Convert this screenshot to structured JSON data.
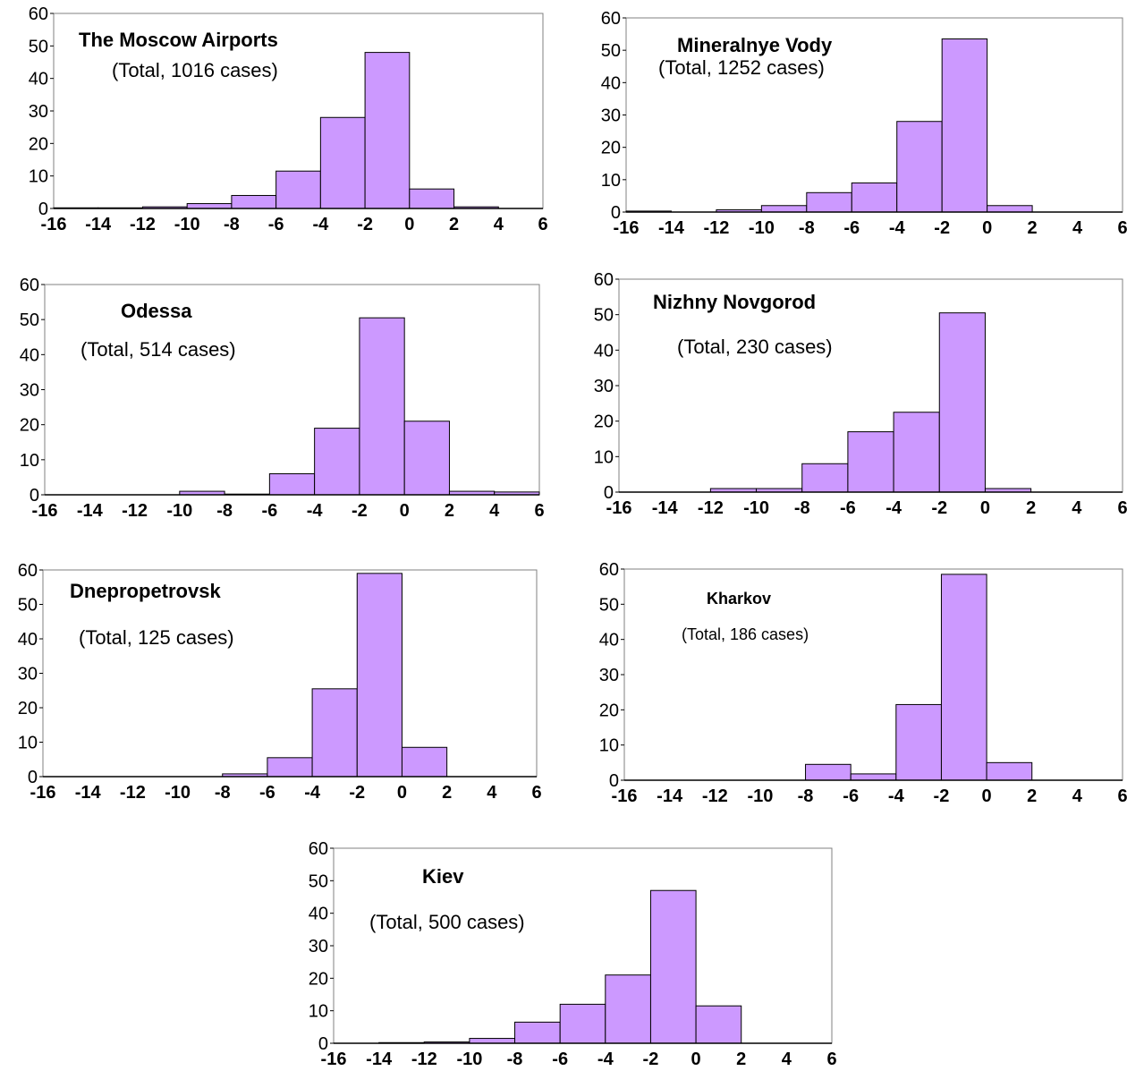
{
  "chart_data": [
    {
      "type": "bar",
      "title": "The Moscow Airports",
      "subtitle": "(Total, 1016 cases)",
      "bin_edges": [
        -16,
        -14,
        -12,
        -10,
        -8,
        -6,
        -4,
        -2,
        0,
        2,
        4,
        6
      ],
      "values": [
        0.2,
        0.2,
        0.5,
        1.5,
        4,
        11.5,
        28,
        48,
        6,
        0.5,
        0
      ],
      "ylim": [
        0,
        60
      ],
      "yticks": [
        "0",
        "10",
        "20",
        "30",
        "40",
        "50",
        "60"
      ],
      "xticks": [
        "-16",
        "-14",
        "-12",
        "-10",
        "-8",
        "-6",
        "-4",
        "-2",
        "0",
        "2",
        "4",
        "6"
      ],
      "color": "#cc99ff",
      "grid": false
    },
    {
      "type": "bar",
      "title": "Mineralnye Vody",
      "subtitle": "(Total, 1252 cases)",
      "bin_edges": [
        -16,
        -14,
        -12,
        -10,
        -8,
        -6,
        -4,
        -2,
        0,
        2,
        4,
        6
      ],
      "values": [
        0.3,
        0,
        0.7,
        2,
        6,
        9,
        28,
        53.5,
        2,
        0,
        0
      ],
      "ylim": [
        0,
        60
      ],
      "yticks": [
        "0",
        "10",
        "20",
        "30",
        "40",
        "50",
        "60"
      ],
      "xticks": [
        "-16",
        "-14",
        "-12",
        "-10",
        "-8",
        "-6",
        "-4",
        "-2",
        "0",
        "2",
        "4",
        "6"
      ],
      "color": "#cc99ff",
      "grid": false
    },
    {
      "type": "bar",
      "title": "Odessa",
      "subtitle": "(Total, 514 cases)",
      "bin_edges": [
        -16,
        -14,
        -12,
        -10,
        -8,
        -6,
        -4,
        -2,
        0,
        2,
        4,
        6
      ],
      "values": [
        0,
        0,
        0,
        1,
        0.2,
        6,
        19,
        50.5,
        21,
        1,
        0.8
      ],
      "ylim": [
        0,
        60
      ],
      "yticks": [
        "0",
        "10",
        "20",
        "30",
        "40",
        "50",
        "60"
      ],
      "xticks": [
        "-16",
        "-14",
        "-12",
        "-10",
        "-8",
        "-6",
        "-4",
        "-2",
        "0",
        "2",
        "4",
        "6"
      ],
      "color": "#cc99ff",
      "grid": false
    },
    {
      "type": "bar",
      "title": "Nizhny Novgorod",
      "subtitle": "(Total, 230 cases)",
      "bin_edges": [
        -16,
        -14,
        -12,
        -10,
        -8,
        -6,
        -4,
        -2,
        0,
        2,
        4,
        6
      ],
      "values": [
        0,
        0,
        1,
        1,
        8,
        17,
        22.5,
        50.5,
        1,
        0,
        0
      ],
      "ylim": [
        0,
        60
      ],
      "yticks": [
        "0",
        "10",
        "20",
        "30",
        "40",
        "50",
        "60"
      ],
      "xticks": [
        "-16",
        "-14",
        "-12",
        "-10",
        "-8",
        "-6",
        "-4",
        "-2",
        "0",
        "2",
        "4",
        "6"
      ],
      "color": "#cc99ff",
      "grid": false
    },
    {
      "type": "bar",
      "title": "Dnepropetrovsk",
      "subtitle": "(Total, 125 cases)",
      "bin_edges": [
        -16,
        -14,
        -12,
        -10,
        -8,
        -6,
        -4,
        -2,
        0,
        2,
        4,
        6
      ],
      "values": [
        0,
        0,
        0,
        0,
        0.8,
        5.5,
        25.5,
        59,
        8.5,
        0,
        0
      ],
      "ylim": [
        0,
        60
      ],
      "yticks": [
        "0",
        "10",
        "20",
        "30",
        "40",
        "50",
        "60"
      ],
      "xticks": [
        "-16",
        "-14",
        "-12",
        "-10",
        "-8",
        "-6",
        "-4",
        "-2",
        "0",
        "2",
        "4",
        "6"
      ],
      "color": "#cc99ff",
      "grid": false
    },
    {
      "type": "bar",
      "title": "Kharkov",
      "subtitle": "(Total, 186 cases)",
      "bin_edges": [
        -16,
        -14,
        -12,
        -10,
        -8,
        -6,
        -4,
        -2,
        0,
        2,
        4,
        6
      ],
      "values": [
        0,
        0,
        0,
        0,
        4.5,
        1.8,
        21.5,
        58.5,
        5,
        0,
        0
      ],
      "ylim": [
        0,
        60
      ],
      "yticks": [
        "0",
        "10",
        "20",
        "30",
        "40",
        "50",
        "60"
      ],
      "xticks": [
        "-16",
        "-14",
        "-12",
        "-10",
        "-8",
        "-6",
        "-4",
        "-2",
        "0",
        "2",
        "4",
        "6"
      ],
      "color": "#cc99ff",
      "grid": false
    },
    {
      "type": "bar",
      "title": "Kiev",
      "subtitle": "(Total, 500 cases)",
      "bin_edges": [
        -16,
        -14,
        -12,
        -10,
        -8,
        -6,
        -4,
        -2,
        0,
        2,
        4,
        6
      ],
      "values": [
        0,
        0.2,
        0.4,
        1.5,
        6.5,
        12,
        21,
        47,
        11.5,
        0,
        0
      ],
      "ylim": [
        0,
        60
      ],
      "yticks": [
        "0",
        "10",
        "20",
        "30",
        "40",
        "50",
        "60"
      ],
      "xticks": [
        "-16",
        "-14",
        "-12",
        "-10",
        "-8",
        "-6",
        "-4",
        "-2",
        "0",
        "2",
        "4",
        "6"
      ],
      "color": "#cc99ff",
      "grid": false
    }
  ]
}
